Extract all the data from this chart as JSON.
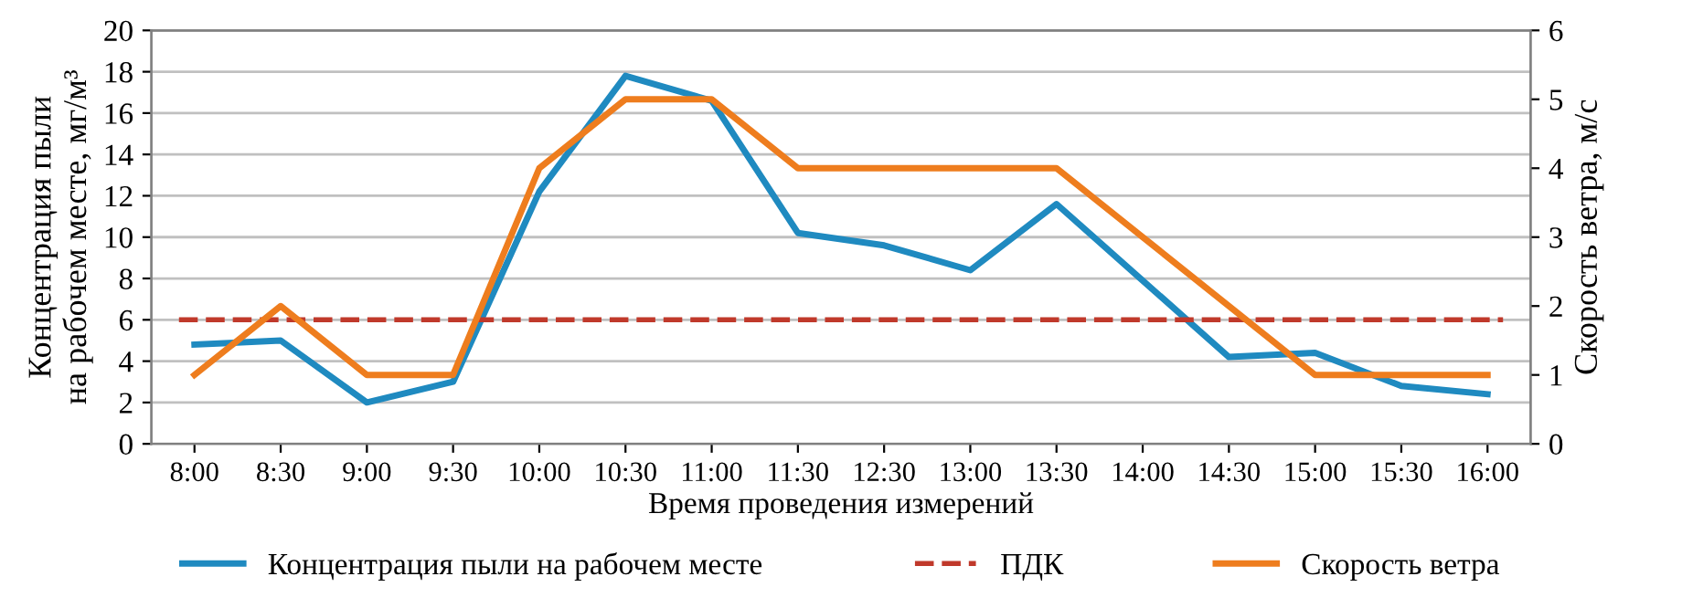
{
  "chart_data": {
    "type": "line",
    "categories": [
      "8:00",
      "8:30",
      "9:00",
      "9:30",
      "10:00",
      "10:30",
      "11:00",
      "11:30",
      "12:30",
      "13:00",
      "13:30",
      "14:00",
      "14:30",
      "15:00",
      "15:30",
      "16:00"
    ],
    "series": [
      {
        "name": "Концентрация пыли на рабочем месте",
        "color": "#1f8ac0",
        "values": [
          4.8,
          5.0,
          2.0,
          3.0,
          12.2,
          17.8,
          16.6,
          10.2,
          9.6,
          8.4,
          11.6,
          7.9,
          4.2,
          4.4,
          2.8,
          2.4
        ]
      },
      {
        "name": "Скорость ветра",
        "color": "#ee7d1e",
        "axis": "y2",
        "values": [
          1,
          2,
          1,
          1,
          4,
          5,
          5,
          4,
          4,
          4,
          4,
          3,
          2,
          1,
          1,
          1
        ]
      }
    ],
    "ref_lines": [
      {
        "axis": "y",
        "value": 6,
        "label": "ПДК",
        "color": "#c0392b",
        "line_style": "dashed"
      }
    ],
    "xlabel": "Время проведения измерений",
    "ylabel": "Концентрация пыли\nна рабочем месте, мг/м³",
    "y2label": "Скорость ветра, м/с",
    "ylim": [
      0,
      20
    ],
    "yticks": [
      0,
      2,
      4,
      6,
      8,
      10,
      12,
      14,
      16,
      18,
      20
    ],
    "y2lim": [
      0,
      6
    ],
    "y2ticks": [
      0,
      1,
      2,
      3,
      4,
      5,
      6
    ],
    "grid": "y",
    "legend": "bottom",
    "marker": "none",
    "line_style": "solid"
  }
}
